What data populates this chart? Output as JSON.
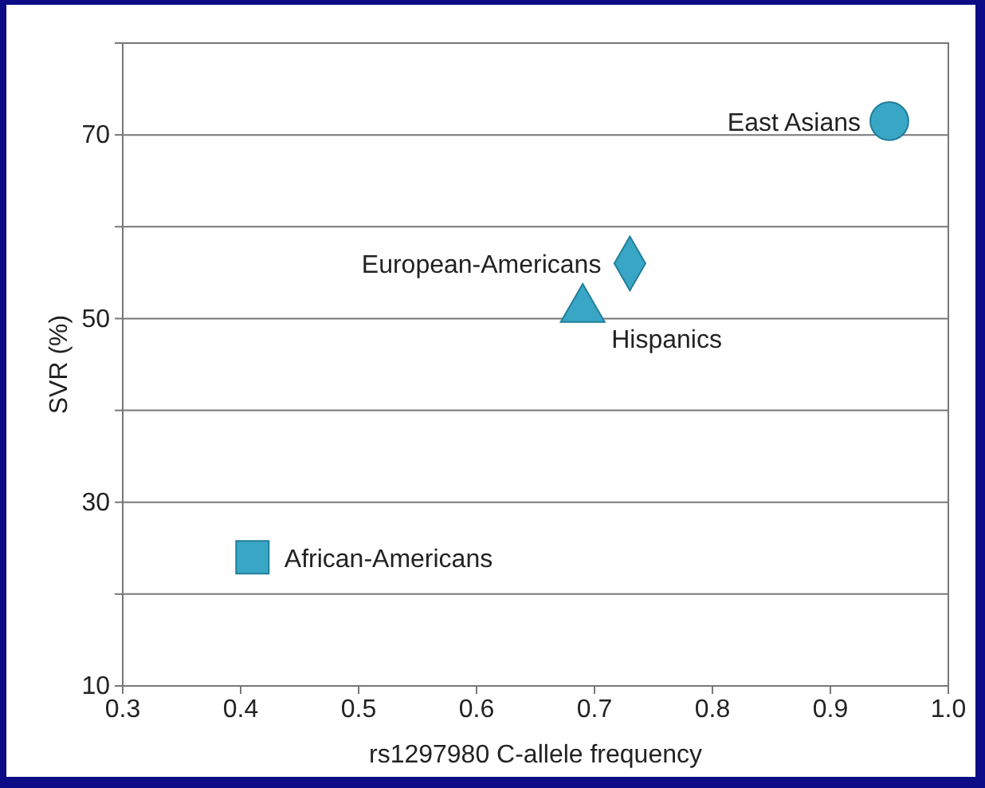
{
  "chart_data": {
    "type": "scatter",
    "xlabel": "rs1297980 C-allele frequency",
    "ylabel": "SVR (%)",
    "xlim": [
      0.3,
      1.0
    ],
    "xticks": [
      0.3,
      0.4,
      0.5,
      0.6,
      0.7,
      0.8,
      0.9,
      {
        "value": 1.0,
        "label": "1.0"
      }
    ],
    "ylim": [
      10,
      80
    ],
    "yticks": [
      10,
      {
        "value": 20,
        "label": null
      },
      30,
      {
        "value": 40,
        "label": null
      },
      50,
      {
        "value": 60,
        "label": null
      },
      70
    ],
    "grid": "y",
    "series": [
      {
        "x": [
          0.95
        ],
        "values": [
          71.5
        ],
        "color": "#3aa6c6",
        "marker": "circle"
      },
      {
        "x": [
          0.73
        ],
        "values": [
          56
        ],
        "color": "#3aa6c6",
        "marker": "diamond"
      },
      {
        "x": [
          0.69
        ],
        "values": [
          51
        ],
        "color": "#3aa6c6",
        "marker": "triangle"
      },
      {
        "x": [
          0.41
        ],
        "values": [
          24
        ],
        "color": "#3aa6c6",
        "marker": "square"
      }
    ],
    "annotations": [
      {
        "text": "East Asians",
        "x": 0.95,
        "y": 71.5
      },
      {
        "text": "European-Americans",
        "x": 0.73,
        "y": 56
      },
      {
        "text": "Hispanics",
        "x": 0.69,
        "y": 51
      },
      {
        "text": "African-Americans",
        "x": 0.41,
        "y": 24
      }
    ]
  }
}
